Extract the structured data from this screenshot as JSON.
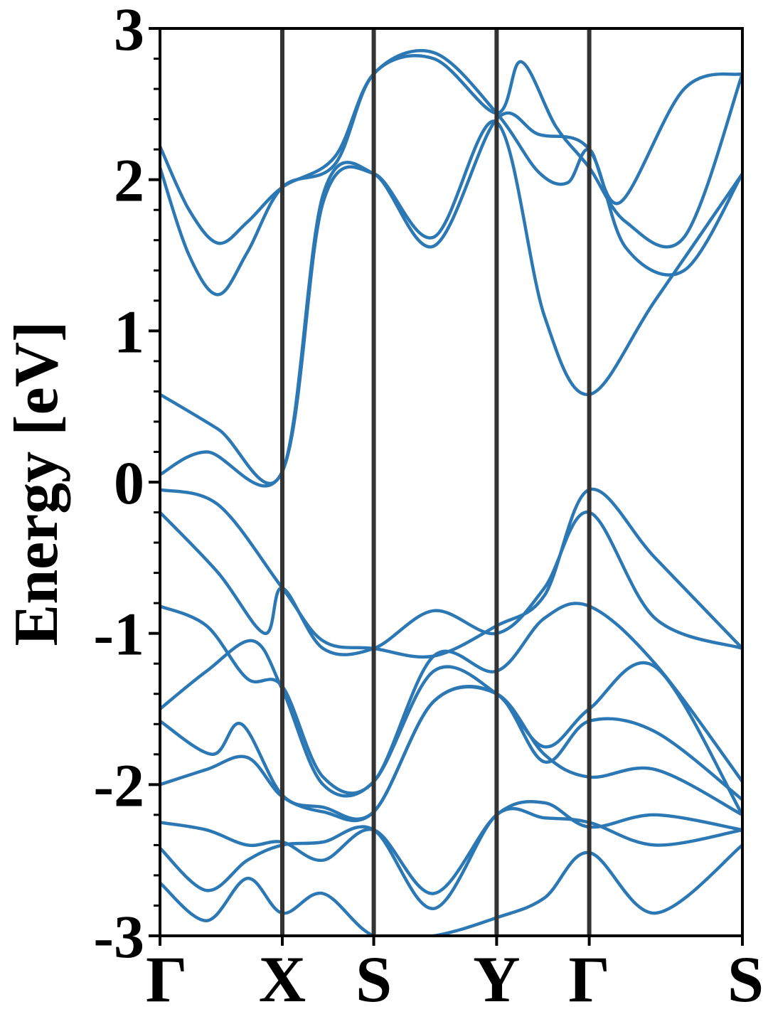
{
  "chart_data": {
    "type": "line",
    "title": "",
    "xlabel": "",
    "ylabel": "Energy [eV]",
    "ylim": [
      -3,
      3
    ],
    "y_ticks": [
      "3",
      "2",
      "1",
      "0",
      "-1",
      "-2",
      "-3"
    ],
    "y_tick_values": [
      3,
      2,
      1,
      0,
      -1,
      -2,
      -3
    ],
    "k_path": [
      {
        "label": "Γ",
        "x": 0.0
      },
      {
        "label": "X",
        "x": 0.21
      },
      {
        "label": "S",
        "x": 0.367
      },
      {
        "label": "Y",
        "x": 0.578
      },
      {
        "label": "Γ",
        "x": 0.737
      },
      {
        "label": "S",
        "x": 1.0
      }
    ],
    "x_range": [
      0.0,
      1.0
    ],
    "line_color": "#2c78b4",
    "separator_color": "#333333",
    "grid": false,
    "legend": "none",
    "series": [
      {
        "x": [
          0,
          0.05,
          0.1,
          0.15,
          0.21,
          0.3,
          0.367,
          0.47,
          0.578,
          0.65,
          0.7,
          0.737,
          0.79,
          0.9,
          1.0
        ],
        "values": [
          2.22,
          1.8,
          1.58,
          1.72,
          1.95,
          2.15,
          2.7,
          2.84,
          2.44,
          2.05,
          1.98,
          2.2,
          1.85,
          2.6,
          2.7
        ]
      },
      {
        "x": [
          0,
          0.05,
          0.1,
          0.15,
          0.21,
          0.3,
          0.367,
          0.47,
          0.578,
          0.62,
          0.68,
          0.737,
          0.8,
          0.9,
          1.0
        ],
        "values": [
          2.08,
          1.5,
          1.24,
          1.52,
          1.95,
          2.1,
          2.7,
          2.8,
          2.44,
          2.78,
          2.35,
          2.08,
          1.72,
          1.62,
          2.7
        ]
      },
      {
        "x": [
          0,
          0.1,
          0.21,
          0.28,
          0.367,
          0.47,
          0.578,
          0.65,
          0.737,
          0.8,
          0.9,
          1.0
        ],
        "values": [
          0.58,
          0.35,
          0.07,
          1.9,
          2.04,
          1.56,
          2.4,
          2.3,
          2.2,
          1.55,
          1.4,
          2.04
        ]
      },
      {
        "x": [
          0,
          0.08,
          0.21,
          0.28,
          0.367,
          0.47,
          0.578,
          0.66,
          0.737,
          0.85,
          1.0
        ],
        "values": [
          0.05,
          0.2,
          0.07,
          1.85,
          2.04,
          1.62,
          2.38,
          1.1,
          0.58,
          1.2,
          2.04
        ]
      },
      {
        "x": [
          0,
          0.1,
          0.21,
          0.28,
          0.367,
          0.47,
          0.578,
          0.66,
          0.737,
          0.85,
          1.0
        ],
        "values": [
          -0.05,
          -0.15,
          -0.7,
          -1.05,
          -1.1,
          -1.15,
          -0.95,
          -0.75,
          -0.05,
          -0.5,
          -1.1
        ]
      },
      {
        "x": [
          0,
          0.1,
          0.18,
          0.21,
          0.28,
          0.367,
          0.47,
          0.578,
          0.66,
          0.737,
          0.85,
          1.0
        ],
        "values": [
          -0.2,
          -0.6,
          -1.0,
          -0.7,
          -1.1,
          -1.1,
          -0.85,
          -1.0,
          -0.7,
          -0.2,
          -0.9,
          -1.1
        ]
      },
      {
        "x": [
          0,
          0.08,
          0.15,
          0.21,
          0.28,
          0.367,
          0.47,
          0.578,
          0.66,
          0.737,
          0.85,
          1.0
        ],
        "values": [
          -0.82,
          -0.95,
          -1.3,
          -1.35,
          -1.95,
          -1.98,
          -1.15,
          -1.25,
          -0.9,
          -0.82,
          -1.2,
          -1.98
        ]
      },
      {
        "x": [
          0,
          0.08,
          0.16,
          0.21,
          0.28,
          0.367,
          0.47,
          0.578,
          0.66,
          0.737,
          0.85,
          1.0
        ],
        "values": [
          -1.5,
          -1.25,
          -1.05,
          -1.37,
          -2.0,
          -1.98,
          -1.25,
          -1.4,
          -1.75,
          -1.5,
          -1.22,
          -2.2
        ]
      },
      {
        "x": [
          0,
          0.09,
          0.14,
          0.21,
          0.28,
          0.367,
          0.47,
          0.578,
          0.66,
          0.737,
          0.85,
          1.0
        ],
        "values": [
          -1.58,
          -1.8,
          -1.6,
          -2.07,
          -2.15,
          -2.18,
          -1.45,
          -1.4,
          -1.85,
          -1.58,
          -1.65,
          -2.1
        ]
      },
      {
        "x": [
          0,
          0.08,
          0.15,
          0.21,
          0.28,
          0.367,
          0.47,
          0.578,
          0.66,
          0.737,
          0.85,
          1.0
        ],
        "values": [
          -2.0,
          -1.9,
          -1.82,
          -2.08,
          -2.18,
          -2.18,
          -1.45,
          -1.4,
          -1.8,
          -1.95,
          -1.9,
          -2.2
        ]
      },
      {
        "x": [
          0,
          0.08,
          0.15,
          0.21,
          0.28,
          0.367,
          0.47,
          0.578,
          0.66,
          0.737,
          0.85,
          1.0
        ],
        "values": [
          -2.25,
          -2.3,
          -2.4,
          -2.38,
          -2.5,
          -2.3,
          -2.72,
          -2.2,
          -2.12,
          -2.28,
          -2.2,
          -2.3
        ]
      },
      {
        "x": [
          0,
          0.08,
          0.15,
          0.21,
          0.28,
          0.367,
          0.47,
          0.578,
          0.66,
          0.737,
          0.85,
          1.0
        ],
        "values": [
          -2.42,
          -2.7,
          -2.5,
          -2.4,
          -2.38,
          -2.3,
          -2.82,
          -2.2,
          -2.22,
          -2.25,
          -2.4,
          -2.3
        ]
      },
      {
        "x": [
          0,
          0.08,
          0.15,
          0.21,
          0.28,
          0.367,
          0.47,
          0.578,
          0.66,
          0.737,
          0.85,
          1.0
        ],
        "values": [
          -2.65,
          -2.9,
          -2.62,
          -2.85,
          -2.72,
          -3.0,
          -3.0,
          -2.88,
          -2.75,
          -2.45,
          -2.85,
          -2.4
        ]
      }
    ]
  }
}
